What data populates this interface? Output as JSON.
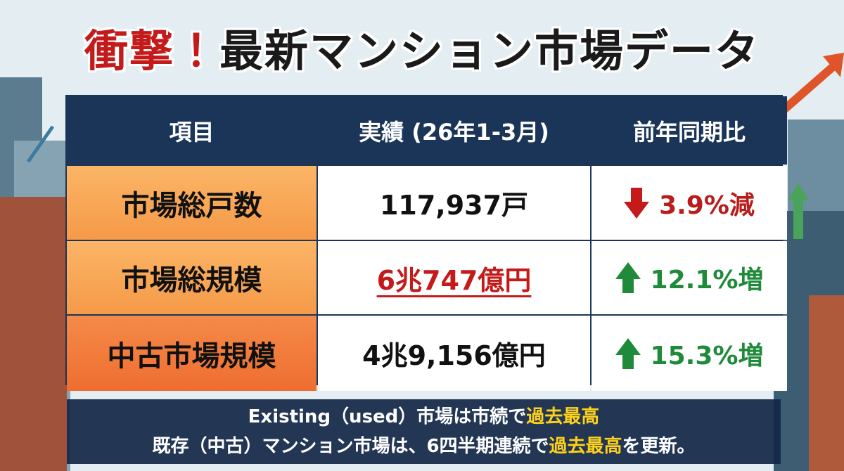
{
  "header": {
    "title_accent": "衝撃！",
    "title": "最新マンション市場データ"
  },
  "table": {
    "headers": [
      "項目",
      "実績 (26年1-3月)",
      "前年同期比"
    ],
    "rows": [
      [
        "市場総戸数",
        "117,937戸",
        "3.9%減"
      ],
      [
        "市場総規模",
        "6兆747億円",
        "12.1%増"
      ],
      [
        "中古市場規模",
        "4兆9,156億円",
        "15.3%増"
      ]
    ]
  },
  "caption": {
    "line1": [
      "Existing（used）市場は市続で",
      "過去最高"
    ],
    "line2": [
      "既存（中古）マンション市場は、6四半期連続で",
      "過去最高",
      "を更新。"
    ]
  }
}
